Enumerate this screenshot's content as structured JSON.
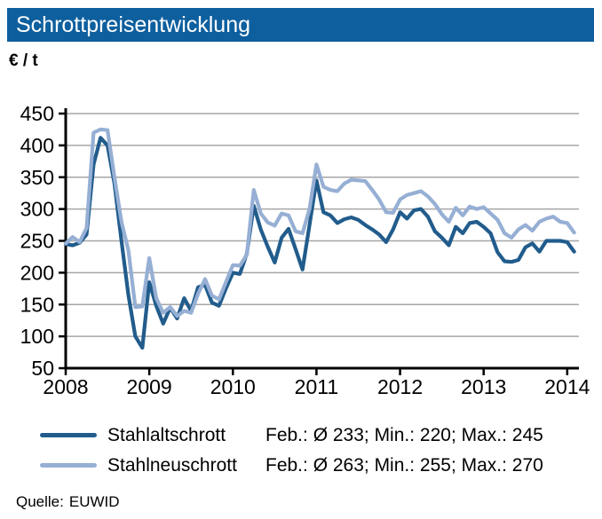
{
  "header": {
    "title": "Schrottpreisentwicklung",
    "bg_color": "#0e5f9e",
    "text_color": "#ffffff"
  },
  "chart_data": {
    "type": "line",
    "title": "Schrottpreisentwicklung",
    "unit_label": "€ / t",
    "x_period": "monthly, Jan 2008 – Feb 2014",
    "x_tick_labels": [
      "2008",
      "2009",
      "2010",
      "2011",
      "2012",
      "2013",
      "2014"
    ],
    "y_ticks": [
      450,
      400,
      350,
      300,
      250,
      200,
      150,
      100,
      50
    ],
    "ylim": [
      50,
      450
    ],
    "grid": "horizontal",
    "grid_color": "#a6a6a6",
    "axis_color": "#000000",
    "legend_position": "bottom",
    "series": [
      {
        "name": "Stahlaltschrott",
        "color": "#215c8c",
        "stats": "Feb.: Ø 233; Min.: 220; Max.: 245",
        "values": [
          245,
          243,
          247,
          260,
          370,
          412,
          400,
          340,
          250,
          165,
          100,
          82,
          185,
          148,
          120,
          145,
          128,
          160,
          140,
          177,
          181,
          153,
          148,
          175,
          200,
          198,
          230,
          305,
          268,
          241,
          216,
          255,
          269,
          237,
          205,
          275,
          345,
          295,
          290,
          278,
          284,
          287,
          283,
          275,
          268,
          260,
          248,
          268,
          295,
          285,
          298,
          300,
          288,
          265,
          255,
          243,
          272,
          262,
          278,
          280,
          272,
          262,
          232,
          218,
          217,
          220,
          240,
          246,
          233,
          250,
          250,
          250,
          248,
          233
        ]
      },
      {
        "name": "Stahlneuschrott",
        "color": "#96afd4",
        "stats": "Feb.: Ø 263; Min.: 255; Max.: 270",
        "values": [
          246,
          256,
          248,
          270,
          420,
          425,
          424,
          350,
          280,
          235,
          146,
          147,
          223,
          160,
          137,
          146,
          132,
          140,
          137,
          167,
          190,
          164,
          158,
          185,
          212,
          211,
          228,
          330,
          293,
          279,
          274,
          293,
          290,
          265,
          262,
          300,
          370,
          335,
          330,
          328,
          340,
          346,
          345,
          344,
          330,
          315,
          295,
          294,
          315,
          322,
          325,
          328,
          320,
          308,
          292,
          280,
          302,
          290,
          304,
          300,
          303,
          293,
          283,
          262,
          255,
          268,
          275,
          266,
          280,
          285,
          288,
          280,
          278,
          263
        ]
      }
    ]
  },
  "source": {
    "label": "Quelle:",
    "value": "EUWID"
  }
}
